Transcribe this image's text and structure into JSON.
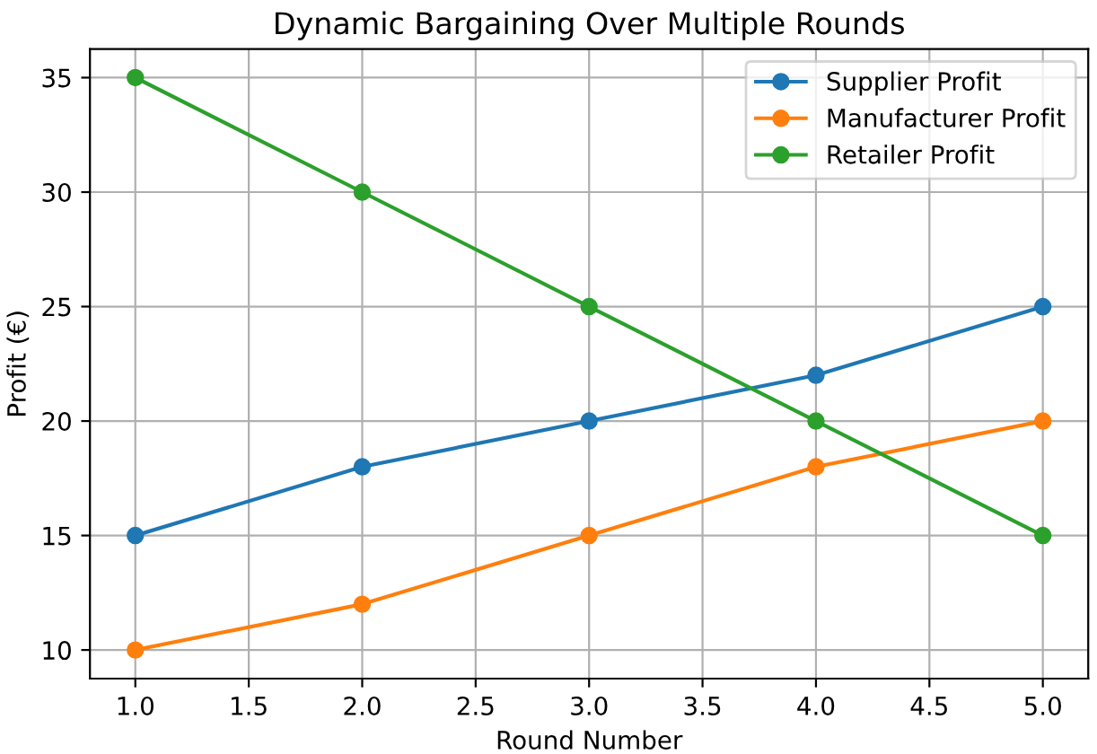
{
  "chart_data": {
    "type": "line",
    "title": "Dynamic Bargaining Over Multiple Rounds",
    "xlabel": "Round Number",
    "ylabel": "Profit (€)",
    "x": [
      1,
      2,
      3,
      4,
      5
    ],
    "series": [
      {
        "name": "Supplier Profit",
        "color": "#1f77b4",
        "values": [
          15,
          18,
          20,
          22,
          25
        ]
      },
      {
        "name": "Manufacturer Profit",
        "color": "#ff7f0e",
        "values": [
          10,
          12,
          15,
          18,
          20
        ]
      },
      {
        "name": "Retailer Profit",
        "color": "#2ca02c",
        "values": [
          35,
          30,
          25,
          20,
          15
        ]
      }
    ],
    "xlim": [
      0.8,
      5.2
    ],
    "ylim": [
      8.75,
      36.25
    ],
    "xticks": [
      {
        "value": 1,
        "label": "1.0"
      },
      1.5,
      {
        "value": 2,
        "label": "2.0"
      },
      2.5,
      {
        "value": 3,
        "label": "3.0"
      },
      3.5,
      {
        "value": 4,
        "label": "4.0"
      },
      4.5,
      {
        "value": 5,
        "label": "5.0"
      }
    ],
    "yticks": [
      10,
      15,
      20,
      25,
      30,
      35
    ],
    "grid": true,
    "legend": "top right",
    "marker": "circle",
    "line_style": "solid"
  }
}
